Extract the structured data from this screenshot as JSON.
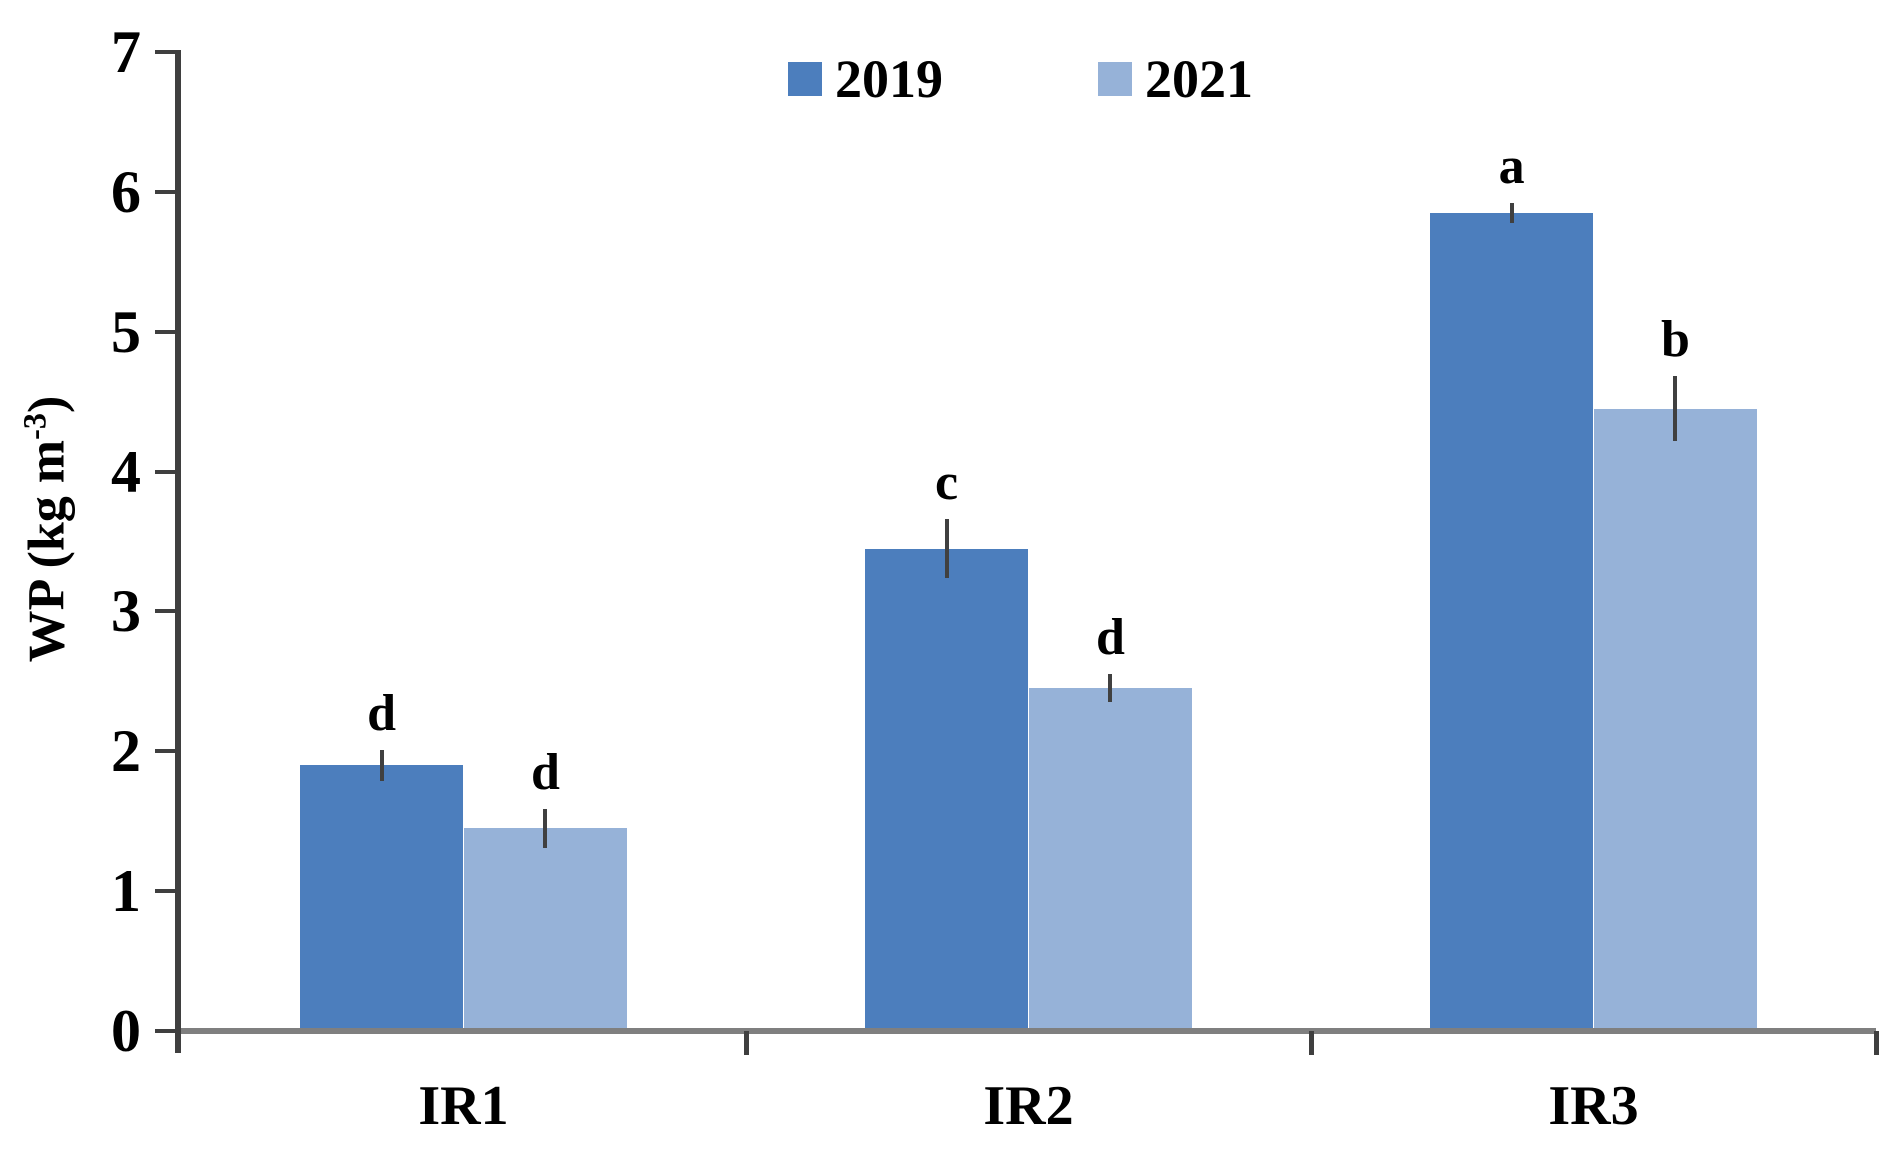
{
  "chart_data": {
    "type": "bar",
    "title": "",
    "xlabel": "",
    "ylabel": "WP (kg m⁻³)",
    "ylim": [
      0,
      7
    ],
    "yticks": [
      0,
      1,
      2,
      3,
      4,
      5,
      6,
      7
    ],
    "grid": false,
    "legend_position": "top-center",
    "categories": [
      "IR1",
      "IR2",
      "IR3"
    ],
    "series": [
      {
        "name": "2019",
        "color": "#4c7ebd",
        "values": [
          1.9,
          3.45,
          5.85
        ],
        "errors": [
          0.11,
          0.21,
          0.07
        ],
        "letters": [
          "d",
          "c",
          "a"
        ]
      },
      {
        "name": "2021",
        "color": "#96b2d8",
        "values": [
          1.45,
          2.45,
          4.45
        ],
        "errors": [
          0.14,
          0.1,
          0.23
        ],
        "letters": [
          "d",
          "d",
          "b"
        ]
      }
    ]
  },
  "y_axis": {
    "label_main": "WP (kg m",
    "label_sup": "-3",
    "label_end": ")"
  },
  "colors": {
    "series_2019": "#4c7ebd",
    "series_2021": "#96b2d8",
    "axis_line": "#3f3f3f",
    "baseline": "#7f7f7f",
    "error_bar": "#404040",
    "text": "#000000"
  }
}
